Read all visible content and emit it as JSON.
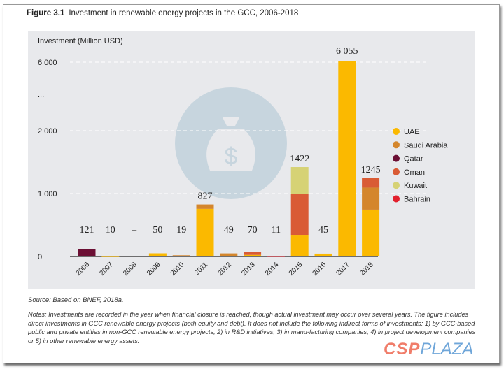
{
  "figure": {
    "label": "Figure 3.1",
    "title": "Investment in renewable energy projects in the GCC, 2006-2018"
  },
  "source": "Source: Based on BNEF, 2018a.",
  "notes": "Notes: Investments are recorded in the year when financial closure is reached, though actual investment may occur over several years. The figure includes direct investments in GCC renewable energy projects (both equity and debt). It does not include the following indirect forms of investments: 1) by GCC-based public and private entities in non-GCC renewable energy projects, 2) in R&D initiatives, 3) in manu-facturing companies, 4) in project development companies or 5) in other renewable energy assets.",
  "watermark": {
    "csp": "CSP",
    "plaza": "PLAZA"
  },
  "chart_data": {
    "type": "bar",
    "stacked": true,
    "title": "Investment in renewable energy projects in the GCC, 2006-2018",
    "ylabel": "Investment (Million USD)",
    "xlabel": "",
    "categories": [
      "2006",
      "2007",
      "2008",
      "2009",
      "2010",
      "2011",
      "2012",
      "2013",
      "2014",
      "2015",
      "2016",
      "2017",
      "2018"
    ],
    "totals_labels": [
      "121",
      "10",
      "–",
      "50",
      "19",
      "827",
      "49",
      "70",
      "11",
      "1422",
      "45",
      "6 055",
      "1245"
    ],
    "y_ticks": [
      "0",
      "1 000",
      "2 000",
      "...",
      "6 000"
    ],
    "axis_break": [
      2000,
      6000
    ],
    "ylim": [
      0,
      6100
    ],
    "grid": "dashed horizontal",
    "legend_position": "right",
    "series": [
      {
        "name": "UAE",
        "color": "#FBB900",
        "values": [
          0,
          10,
          0,
          50,
          0,
          757,
          0,
          25,
          0,
          344,
          45,
          6055,
          745
        ]
      },
      {
        "name": "Saudi Arabia",
        "color": "#D4862C",
        "values": [
          0,
          0,
          0,
          0,
          19,
          70,
          49,
          0,
          0,
          0,
          0,
          0,
          350
        ]
      },
      {
        "name": "Qatar",
        "color": "#6B0F34",
        "values": [
          121,
          0,
          0,
          0,
          0,
          0,
          0,
          0,
          0,
          0,
          0,
          0,
          0
        ]
      },
      {
        "name": "Oman",
        "color": "#D95B35",
        "values": [
          0,
          0,
          0,
          0,
          0,
          0,
          0,
          45,
          0,
          645,
          0,
          0,
          150
        ]
      },
      {
        "name": "Kuwait",
        "color": "#D6D275",
        "values": [
          0,
          0,
          0,
          0,
          0,
          0,
          0,
          0,
          0,
          433,
          0,
          0,
          0
        ]
      },
      {
        "name": "Bahrain",
        "color": "#E2202D",
        "values": [
          0,
          0,
          0,
          0,
          0,
          0,
          0,
          0,
          11,
          0,
          0,
          0,
          0
        ]
      }
    ]
  }
}
